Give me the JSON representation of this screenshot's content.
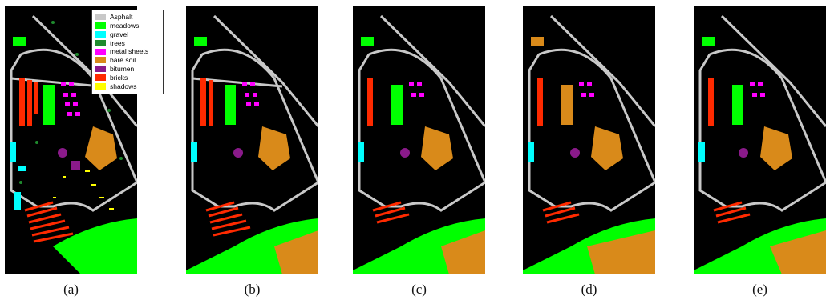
{
  "legend": {
    "items": [
      {
        "label": "Asphalt",
        "color": "#c8c8c8"
      },
      {
        "label": "meadows",
        "color": "#00ff00"
      },
      {
        "label": "gravel",
        "color": "#00ffff"
      },
      {
        "label": "trees",
        "color": "#1f8b2e"
      },
      {
        "label": "metal sheets",
        "color": "#ff00ff"
      },
      {
        "label": "bare soil",
        "color": "#d98a1a"
      },
      {
        "label": "bitumen",
        "color": "#8a1a8a"
      },
      {
        "label": "bricks",
        "color": "#ff2a00"
      },
      {
        "label": "shadows",
        "color": "#ffff00"
      }
    ]
  },
  "panels": [
    {
      "caption": "(a)"
    },
    {
      "caption": "(b)"
    },
    {
      "caption": "(c)"
    },
    {
      "caption": "(d)"
    },
    {
      "caption": "(e)"
    }
  ]
}
